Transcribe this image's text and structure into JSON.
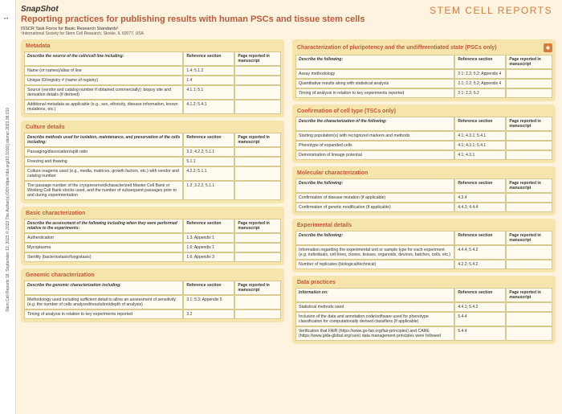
{
  "journal_name": "STEM CELL REPORTS",
  "snapshot": "SnapShot",
  "title": "Reporting practices for publishing results with human PSCs and tissue stem cells",
  "subtitle": "ISSCR Task Force for Basic Research Standards¹",
  "affiliation": "¹International Society for Stem Cell Research, Skokie, IL 60077, USA",
  "citation": "Stem Cell Reports 18, September 12, 2023 © 2023 The Author(s)  DOI:https://doi.org/10.1016/j.stemcr.2023.08.010",
  "page_number": "1",
  "col_headers": {
    "ref": "Reference section",
    "page": "Page reported in manuscript"
  },
  "sections_left": [
    {
      "title": "Metadata",
      "icon": "metadata",
      "desc": "Describe the source of the cells/cell line including:",
      "rows": [
        {
          "d": "Name (or names)/alias of line",
          "r": "1.4; 5.1.2"
        },
        {
          "d": "Unique ID/registry # (name of registry)",
          "r": "1.4"
        },
        {
          "d": "Source (vendor and catalog number if obtained commercially); biopsy site and derivation details (if derived)",
          "r": "4.1.1; 5.1"
        },
        {
          "d": "Additional metadata as applicable (e.g., sex, ethnicity, disease information, known mutations, etc.)",
          "r": "4.1.2; 5.4.1"
        }
      ]
    },
    {
      "title": "Culture details",
      "icon": "culture",
      "desc": "Describe methods used for isolation, maintenance, and preservation of the cells including:",
      "rows": [
        {
          "d": "Passaging/dissociation/split ratio",
          "r": "3.2; 4.2.2; 5.1.1"
        },
        {
          "d": "Freezing and thawing",
          "r": "5.1.1"
        },
        {
          "d": "Culture reagents used (e.g., media, matrices, growth factors, etc.) with vendor and catalog number",
          "r": "4.2.2; 5.1.1"
        },
        {
          "d": "The passage number of the cryopreserved/characterized Master Cell Bank or Working Cell Bank stocks used, and the number of subsequent passages prior to and during experimentation",
          "r": "1.2; 3.2.2; 5.1.1"
        }
      ]
    },
    {
      "title": "Basic characterization",
      "icon": "basic",
      "desc": "Describe the assessment of the following including when they were performed relative to the experiments:",
      "rows": [
        {
          "d": "Authentication",
          "r": "1.3; Appendix 1"
        },
        {
          "d": "Mycoplasma",
          "r": "1.6; Appendix 1"
        },
        {
          "d": "Sterility (bacteriostasis/fungistasis)",
          "r": "1.6; Appendix 3"
        }
      ]
    },
    {
      "title": "Genomic characterization",
      "icon": "genomic",
      "desc": "Describe the genomic characterization including:",
      "rows": [
        {
          "d": "Methodology used including sufficient detail to allow an assessment of sensitivity (e.g. the number of cells analyzed/resolution/depth of analysis)",
          "r": "3.1; 5.3; Appendix 5"
        },
        {
          "d": "Timing of analysis in relation to key experiments reported",
          "r": "3.2"
        }
      ]
    }
  ],
  "sections_right": [
    {
      "title": "Characterization of pluripotency and the undifferentiated state (PSCs only)",
      "icon": "pluripotency",
      "desc": "Describe the following:",
      "rows": [
        {
          "d": "Assay methodology",
          "r": "2.1; 2.2; 5.2; Appendix 4"
        },
        {
          "d": "Quantitative results along with statistical analysis",
          "r": "2.1; 2.2; 5.2; Appendix 4"
        },
        {
          "d": "Timing of analysis in relation to key experiments reported",
          "r": "2.1; 2.2; 5.2"
        }
      ]
    },
    {
      "title": "Confirmation of cell type (TSCs only)",
      "icon": "confirm",
      "desc": "Describe the characterization of the following:",
      "rows": [
        {
          "d": "Starting population(s) with recognized markers and methods",
          "r": "4.1; 4.3.1; 5.4.1"
        },
        {
          "d": "Phenotype of expanded cells",
          "r": "4.1; 4.3.1; 5.4.1"
        },
        {
          "d": "Demonstration of lineage potential",
          "r": "4.1; 4.3.1"
        }
      ]
    },
    {
      "title": "Molecular characterization",
      "icon": "molecular",
      "desc": "Describe the following:",
      "rows": [
        {
          "d": "Confirmation of disease mutation (if applicable)",
          "r": "4.3.4"
        },
        {
          "d": "Confirmation of genetic modification (if applicable)",
          "r": "4.4.3; 4.4.4"
        }
      ]
    },
    {
      "title": "Experimental details",
      "icon": "experimental",
      "desc": "Describe the following:",
      "rows": [
        {
          "d": "Information regarding the experimental unit or sample type for each experiment (e.g. individuals, cell lines, clones, tissues, organoids, devices, batches, cells, etc.)",
          "r": "4.4.4; 5.4.2"
        },
        {
          "d": "Number of replicates (biological/technical)",
          "r": "4.2.2; 5.4.2"
        }
      ]
    },
    {
      "title": "Data practices",
      "icon": "data",
      "desc": "Information on:",
      "rows": [
        {
          "d": "Statistical methods used",
          "r": "4.4.1; 5.4.2"
        },
        {
          "d": "Inclusion of the data and annotation code/software used for phenotype classification for computationally derived classifiers (if applicable)",
          "r": "5.4.4"
        },
        {
          "d": "Verification that FAIR (https://www.go-fair.org/fair-principles) and CARE (https://www.gida-global.org/care) data management principles were followed",
          "r": "5.4.4"
        }
      ]
    }
  ]
}
